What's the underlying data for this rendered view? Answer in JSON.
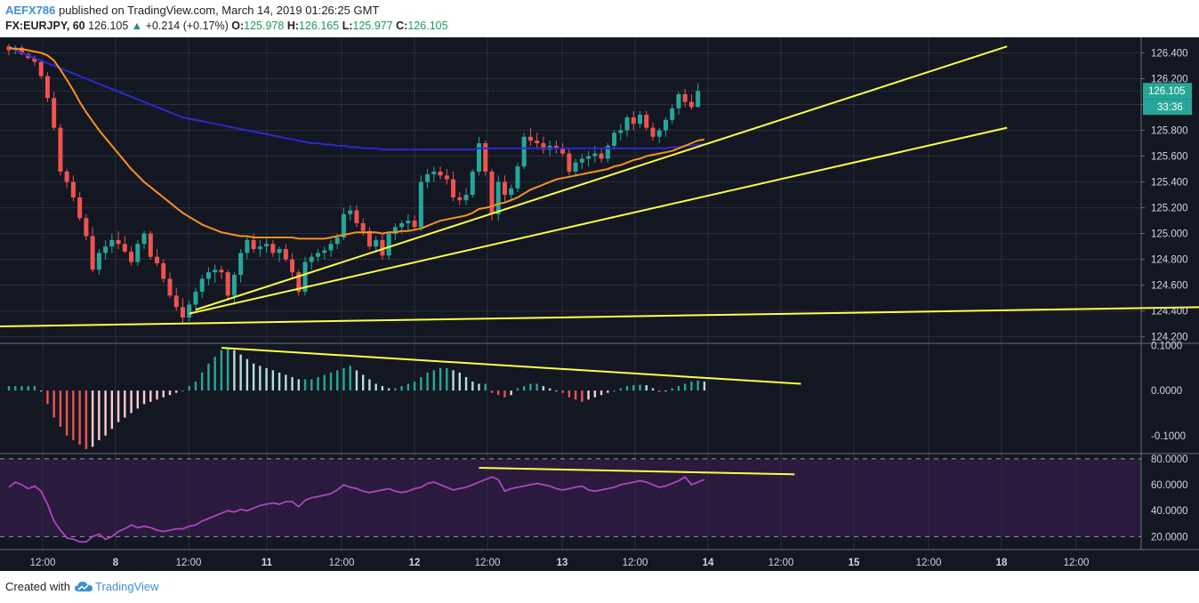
{
  "header": {
    "author": "AEFX786",
    "published": " published on TradingView.com, March 14, 2019 01:26:25 GMT",
    "symbol": "FX:EURJPY, 60",
    "last": "126.105",
    "change_arrow": "▲",
    "change": "+0.214 (+0.17%)",
    "o_label": "O:",
    "o_val": "125.978",
    "h_label": "H:",
    "h_val": "126.165",
    "l_label": "L:",
    "l_val": "125.977",
    "c_label": "C:",
    "c_val": "126.105"
  },
  "footer": {
    "created_with": "Created with",
    "brand": "TradingView",
    "logo_icon": "tradingview-cloud-icon"
  },
  "colors": {
    "background": "#131722",
    "bull": "#26a69a",
    "bear": "#ef5350",
    "ma_fast": "#f7931e",
    "ma_slow": "#2a2ad0",
    "trendline": "#ffff45",
    "rsi": "#ab47bc",
    "rsi_band": "#2a1a3d",
    "axis_text": "#d1d4dc",
    "price_tag": "#26a69a"
  },
  "chart_data": {
    "type": "candlestick",
    "symbol": "FX:EURJPY",
    "interval": "60",
    "ylim": [
      124.15,
      126.52
    ],
    "price_ticks": [
      "126.400",
      "126.200",
      "126.000",
      "125.800",
      "125.600",
      "125.400",
      "125.200",
      "125.000",
      "124.800",
      "124.600",
      "124.400",
      "124.200"
    ],
    "last_price_label": "126.105",
    "countdown_label": "33:36",
    "x_tick_labels": [
      "12:00",
      "8",
      "12:00",
      "11",
      "12:00",
      "12",
      "12:00",
      "13",
      "12:00",
      "14",
      "12:00",
      "15",
      "12:00",
      "18",
      "12:00"
    ],
    "candles": [
      [
        126.45,
        126.47,
        126.38,
        126.42
      ],
      [
        126.42,
        126.46,
        126.39,
        126.44
      ],
      [
        126.44,
        126.46,
        126.38,
        126.39
      ],
      [
        126.39,
        126.4,
        126.35,
        126.36
      ],
      [
        126.36,
        126.38,
        126.3,
        126.33
      ],
      [
        126.33,
        126.35,
        126.2,
        126.22
      ],
      [
        126.22,
        126.25,
        126.02,
        126.05
      ],
      [
        126.05,
        126.1,
        125.8,
        125.82
      ],
      [
        125.82,
        125.85,
        125.45,
        125.48
      ],
      [
        125.48,
        125.5,
        125.35,
        125.4
      ],
      [
        125.4,
        125.45,
        125.25,
        125.28
      ],
      [
        125.28,
        125.32,
        125.1,
        125.12
      ],
      [
        125.12,
        125.15,
        124.95,
        124.98
      ],
      [
        124.98,
        125.05,
        124.7,
        124.72
      ],
      [
        124.72,
        124.88,
        124.68,
        124.85
      ],
      [
        124.85,
        124.95,
        124.8,
        124.9
      ],
      [
        124.9,
        125.0,
        124.85,
        124.95
      ],
      [
        124.95,
        125.02,
        124.88,
        124.92
      ],
      [
        124.92,
        124.98,
        124.85,
        124.86
      ],
      [
        124.86,
        124.9,
        124.75,
        124.78
      ],
      [
        124.78,
        124.95,
        124.75,
        124.92
      ],
      [
        124.92,
        125.02,
        124.88,
        125.0
      ],
      [
        125.0,
        125.02,
        124.8,
        124.82
      ],
      [
        124.82,
        124.88,
        124.75,
        124.77
      ],
      [
        124.77,
        124.8,
        124.62,
        124.65
      ],
      [
        124.65,
        124.7,
        124.5,
        124.52
      ],
      [
        124.52,
        124.58,
        124.4,
        124.43
      ],
      [
        124.43,
        124.5,
        124.3,
        124.35
      ],
      [
        124.35,
        124.48,
        124.32,
        124.45
      ],
      [
        124.45,
        124.58,
        124.4,
        124.55
      ],
      [
        124.55,
        124.68,
        124.5,
        124.65
      ],
      [
        124.65,
        124.74,
        124.6,
        124.7
      ],
      [
        124.7,
        124.76,
        124.62,
        124.72
      ],
      [
        124.72,
        124.75,
        124.65,
        124.7
      ],
      [
        124.7,
        124.72,
        124.48,
        124.52
      ],
      [
        124.52,
        124.7,
        124.45,
        124.68
      ],
      [
        124.68,
        124.88,
        124.62,
        124.85
      ],
      [
        124.85,
        124.98,
        124.8,
        124.95
      ],
      [
        124.95,
        125.0,
        124.85,
        124.88
      ],
      [
        124.88,
        124.95,
        124.82,
        124.9
      ],
      [
        124.9,
        124.96,
        124.85,
        124.92
      ],
      [
        124.92,
        124.95,
        124.82,
        124.85
      ],
      [
        124.85,
        124.9,
        124.78,
        124.88
      ],
      [
        124.88,
        124.92,
        124.78,
        124.8
      ],
      [
        124.8,
        124.85,
        124.65,
        124.7
      ],
      [
        124.7,
        124.72,
        124.52,
        124.55
      ],
      [
        124.55,
        124.82,
        124.52,
        124.78
      ],
      [
        124.78,
        124.85,
        124.72,
        124.82
      ],
      [
        124.82,
        124.88,
        124.78,
        124.85
      ],
      [
        124.85,
        124.9,
        124.8,
        124.87
      ],
      [
        124.87,
        124.95,
        124.82,
        124.92
      ],
      [
        124.92,
        125.0,
        124.88,
        124.97
      ],
      [
        124.97,
        125.2,
        124.95,
        125.15
      ],
      [
        125.15,
        125.22,
        125.1,
        125.18
      ],
      [
        125.18,
        125.22,
        125.05,
        125.08
      ],
      [
        125.08,
        125.12,
        124.98,
        125.02
      ],
      [
        125.02,
        125.05,
        124.88,
        124.9
      ],
      [
        124.9,
        124.98,
        124.85,
        124.95
      ],
      [
        124.95,
        125.0,
        124.8,
        124.83
      ],
      [
        124.83,
        125.02,
        124.8,
        125.0
      ],
      [
        125.0,
        125.08,
        124.95,
        125.05
      ],
      [
        125.05,
        125.1,
        125.0,
        125.08
      ],
      [
        125.08,
        125.15,
        125.02,
        125.1
      ],
      [
        125.1,
        125.14,
        125.02,
        125.05
      ],
      [
        125.05,
        125.45,
        125.02,
        125.4
      ],
      [
        125.4,
        125.5,
        125.35,
        125.46
      ],
      [
        125.46,
        125.52,
        125.4,
        125.48
      ],
      [
        125.48,
        125.52,
        125.42,
        125.45
      ],
      [
        125.45,
        125.5,
        125.38,
        125.42
      ],
      [
        125.42,
        125.48,
        125.25,
        125.28
      ],
      [
        125.28,
        125.32,
        125.22,
        125.26
      ],
      [
        125.26,
        125.35,
        125.22,
        125.3
      ],
      [
        125.3,
        125.5,
        125.28,
        125.48
      ],
      [
        125.48,
        125.75,
        125.45,
        125.7
      ],
      [
        125.7,
        125.72,
        125.45,
        125.48
      ],
      [
        125.48,
        125.5,
        125.1,
        125.15
      ],
      [
        125.15,
        125.45,
        125.1,
        125.4
      ],
      [
        125.4,
        125.45,
        125.25,
        125.3
      ],
      [
        125.3,
        125.38,
        125.25,
        125.35
      ],
      [
        125.35,
        125.55,
        125.32,
        125.52
      ],
      [
        125.52,
        125.78,
        125.5,
        125.75
      ],
      [
        125.75,
        125.82,
        125.68,
        125.72
      ],
      [
        125.72,
        125.78,
        125.65,
        125.7
      ],
      [
        125.7,
        125.75,
        125.62,
        125.65
      ],
      [
        125.65,
        125.72,
        125.6,
        125.68
      ],
      [
        125.68,
        125.72,
        125.62,
        125.66
      ],
      [
        125.66,
        125.7,
        125.6,
        125.62
      ],
      [
        125.62,
        125.66,
        125.45,
        125.48
      ],
      [
        125.48,
        125.58,
        125.45,
        125.55
      ],
      [
        125.55,
        125.62,
        125.5,
        125.58
      ],
      [
        125.58,
        125.64,
        125.52,
        125.6
      ],
      [
        125.6,
        125.68,
        125.55,
        125.62
      ],
      [
        125.62,
        125.66,
        125.55,
        125.58
      ],
      [
        125.58,
        125.7,
        125.55,
        125.68
      ],
      [
        125.68,
        125.8,
        125.65,
        125.78
      ],
      [
        125.78,
        125.85,
        125.72,
        125.8
      ],
      [
        125.8,
        125.92,
        125.75,
        125.9
      ],
      [
        125.9,
        125.95,
        125.8,
        125.85
      ],
      [
        125.85,
        125.95,
        125.82,
        125.92
      ],
      [
        125.92,
        125.95,
        125.8,
        125.82
      ],
      [
        125.82,
        125.86,
        125.72,
        125.75
      ],
      [
        125.75,
        125.82,
        125.7,
        125.8
      ],
      [
        125.8,
        125.9,
        125.75,
        125.88
      ],
      [
        125.88,
        126.0,
        125.85,
        125.97
      ],
      [
        125.97,
        126.1,
        125.92,
        126.08
      ],
      [
        126.08,
        126.12,
        125.98,
        126.02
      ],
      [
        126.02,
        126.08,
        125.96,
        125.98
      ],
      [
        125.98,
        126.165,
        125.977,
        126.105
      ]
    ],
    "ma_fast": [
      126.44,
      126.43,
      126.43,
      126.42,
      126.41,
      126.4,
      126.38,
      126.34,
      126.27,
      126.19,
      126.11,
      126.02,
      125.94,
      125.87,
      125.8,
      125.74,
      125.68,
      125.62,
      125.56,
      125.5,
      125.45,
      125.4,
      125.36,
      125.32,
      125.28,
      125.24,
      125.2,
      125.16,
      125.13,
      125.1,
      125.07,
      125.05,
      125.03,
      125.01,
      125.0,
      124.99,
      124.98,
      124.98,
      124.97,
      124.97,
      124.97,
      124.97,
      124.97,
      124.97,
      124.97,
      124.96,
      124.96,
      124.96,
      124.96,
      124.96,
      124.97,
      124.98,
      124.99,
      125.0,
      125.01,
      125.01,
      125.01,
      125.01,
      125.0,
      125.01,
      125.01,
      125.02,
      125.02,
      125.03,
      125.04,
      125.06,
      125.08,
      125.1,
      125.11,
      125.12,
      125.13,
      125.14,
      125.16,
      125.19,
      125.2,
      125.21,
      125.23,
      125.24,
      125.26,
      125.28,
      125.31,
      125.34,
      125.36,
      125.38,
      125.4,
      125.42,
      125.43,
      125.44,
      125.45,
      125.46,
      125.47,
      125.48,
      125.49,
      125.5,
      125.52,
      125.53,
      125.55,
      125.57,
      125.58,
      125.6,
      125.61,
      125.62,
      125.63,
      125.64,
      125.66,
      125.68,
      125.7,
      125.72,
      125.73
    ],
    "ma_slow": [
      126.44,
      126.42,
      126.4,
      126.38,
      126.36,
      126.34,
      126.32,
      126.3,
      126.28,
      126.26,
      126.24,
      126.22,
      126.2,
      126.18,
      126.16,
      126.14,
      126.12,
      126.1,
      126.08,
      126.06,
      126.04,
      126.02,
      126.0,
      125.98,
      125.96,
      125.94,
      125.92,
      125.9,
      125.89,
      125.88,
      125.87,
      125.86,
      125.85,
      125.84,
      125.83,
      125.82,
      125.81,
      125.8,
      125.79,
      125.78,
      125.77,
      125.76,
      125.75,
      125.74,
      125.73,
      125.72,
      125.71,
      125.7,
      125.7,
      125.69,
      125.69,
      125.68,
      125.68,
      125.67,
      125.67,
      125.66,
      125.66,
      125.66,
      125.65,
      125.65,
      125.65,
      125.65,
      125.65,
      125.65,
      125.65,
      125.65,
      125.65,
      125.65,
      125.65,
      125.65,
      125.65,
      125.65,
      125.65,
      125.66,
      125.66,
      125.66,
      125.66,
      125.66,
      125.66,
      125.66,
      125.66,
      125.66,
      125.66,
      125.66,
      125.66,
      125.66,
      125.66,
      125.66,
      125.66,
      125.66,
      125.66,
      125.66,
      125.66,
      125.66,
      125.66,
      125.66,
      125.66,
      125.66,
      125.66,
      125.66,
      125.66,
      125.66,
      125.66,
      125.67,
      125.67,
      125.68,
      125.68,
      125.69,
      125.69
    ],
    "trendlines": [
      {
        "from": [
          29,
          124.41
        ],
        "to": [
          155,
          126.45
        ]
      },
      {
        "from": [
          28,
          124.38
        ],
        "to": [
          155,
          125.82
        ]
      },
      {
        "from": [
          -2,
          124.28
        ],
        "to": [
          210,
          124.45
        ]
      }
    ],
    "macd": {
      "ylim": [
        -0.14,
        0.105
      ],
      "ticks": [
        "0.1000",
        "0.0000",
        "-0.1000"
      ],
      "histogram": [
        0.01,
        0.01,
        0.01,
        0.01,
        0.01,
        0.0,
        -0.03,
        -0.06,
        -0.08,
        -0.1,
        -0.11,
        -0.12,
        -0.13,
        -0.125,
        -0.11,
        -0.1,
        -0.085,
        -0.07,
        -0.06,
        -0.05,
        -0.04,
        -0.03,
        -0.025,
        -0.02,
        -0.015,
        -0.01,
        -0.005,
        0.0,
        0.01,
        0.02,
        0.04,
        0.06,
        0.075,
        0.09,
        0.095,
        0.09,
        0.08,
        0.07,
        0.06,
        0.055,
        0.05,
        0.045,
        0.04,
        0.035,
        0.03,
        0.025,
        0.025,
        0.025,
        0.03,
        0.035,
        0.04,
        0.045,
        0.05,
        0.055,
        0.045,
        0.035,
        0.025,
        0.015,
        0.01,
        0.005,
        0.005,
        0.01,
        0.015,
        0.02,
        0.03,
        0.04,
        0.045,
        0.05,
        0.05,
        0.045,
        0.04,
        0.03,
        0.02,
        0.015,
        0.015,
        -0.005,
        -0.01,
        -0.015,
        -0.01,
        0.005,
        0.01,
        0.015,
        0.015,
        0.01,
        0.005,
        0.0,
        -0.005,
        -0.015,
        -0.02,
        -0.025,
        -0.02,
        -0.015,
        -0.01,
        -0.005,
        0.0,
        0.005,
        0.01,
        0.012,
        0.013,
        0.012,
        0.005,
        -0.003,
        -0.002,
        0.005,
        0.01,
        0.015,
        0.02,
        0.022,
        0.02
      ]
    },
    "rsi": {
      "ylim": [
        10,
        84
      ],
      "ticks": [
        "80.0000",
        "60.0000",
        "40.0000",
        "20.0000"
      ],
      "bands": [
        80,
        20
      ],
      "values": [
        58,
        62,
        60,
        57,
        59,
        55,
        45,
        32,
        25,
        19,
        18,
        16,
        16,
        20,
        22,
        18,
        20,
        24,
        26,
        29,
        27,
        28,
        27,
        25,
        24,
        25,
        26,
        26,
        28,
        29,
        32,
        34,
        36,
        38,
        40,
        39,
        41,
        40,
        42,
        44,
        45,
        46,
        45,
        47,
        47,
        43,
        48,
        50,
        51,
        52,
        53,
        56,
        60,
        58,
        57,
        55,
        54,
        55,
        56,
        57,
        55,
        54,
        55,
        57,
        58,
        61,
        62,
        60,
        58,
        56,
        57,
        58,
        60,
        62,
        64,
        66,
        64,
        55,
        57,
        58,
        59,
        60,
        61,
        60,
        59,
        57,
        56,
        57,
        58,
        59,
        56,
        55,
        56,
        57,
        58,
        60,
        61,
        62,
        63,
        62,
        60,
        58,
        59,
        61,
        63,
        66,
        60,
        62,
        64
      ]
    },
    "macd_trendline": {
      "from": [
        33,
        0.095
      ],
      "to": [
        123,
        0.015
      ]
    },
    "rsi_trendline": {
      "from": [
        73,
        73
      ],
      "to": [
        122,
        68
      ]
    }
  }
}
